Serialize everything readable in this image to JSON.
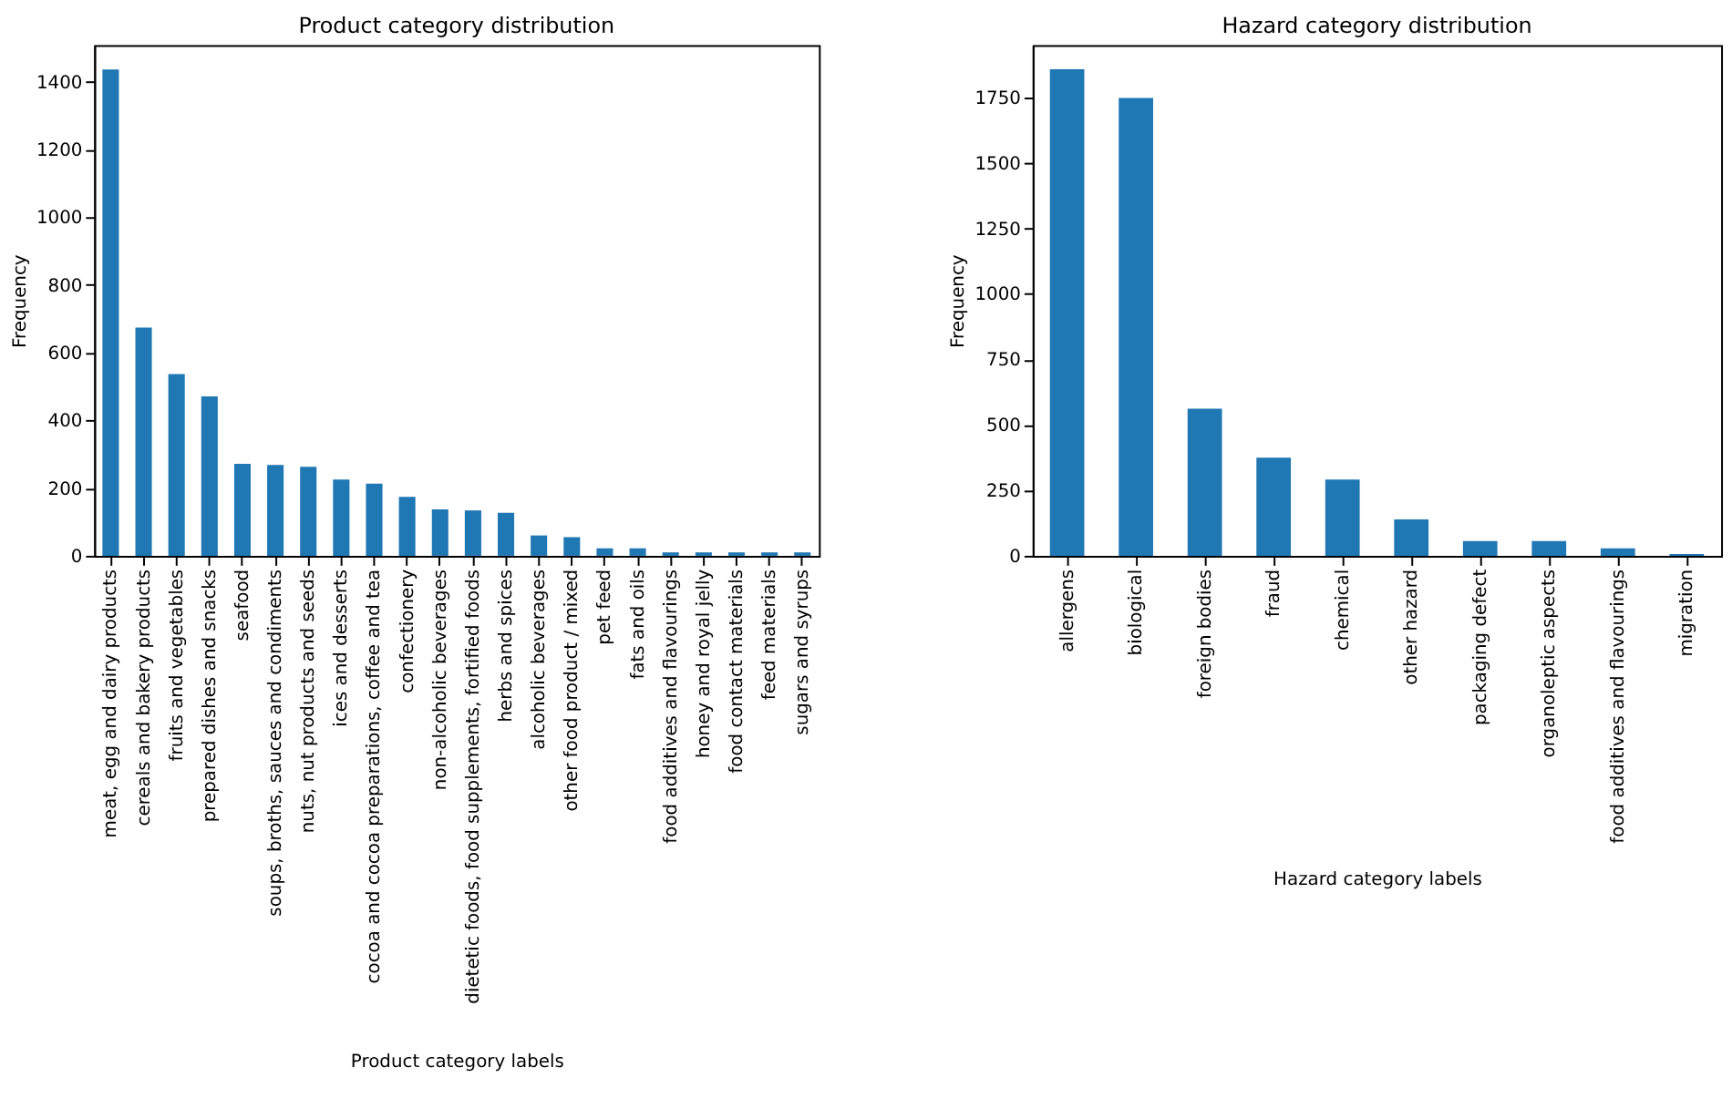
{
  "chart_data": [
    {
      "type": "bar",
      "title": "Product category distribution",
      "xlabel": "Product category labels",
      "ylabel": "Frequency",
      "categories": [
        "meat, egg and dairy products",
        "cereals and bakery products",
        "fruits and vegetables",
        "prepared dishes and snacks",
        "seafood",
        "soups, broths, sauces and condiments",
        "nuts, nut products and seeds",
        "ices and desserts",
        "cocoa and cocoa preparations, coffee and tea",
        "confectionery",
        "non-alcoholic beverages",
        "dietetic foods, food supplements, fortified foods",
        "herbs and spices",
        "alcoholic beverages",
        "other food product / mixed",
        "pet feed",
        "fats and oils",
        "food additives and flavourings",
        "honey and royal jelly",
        "food contact materials",
        "feed materials",
        "sugars and syrups"
      ],
      "values": [
        1437,
        674,
        537,
        471,
        272,
        268,
        263,
        225,
        213,
        174,
        137,
        134,
        127,
        60,
        55,
        22,
        22,
        10,
        10,
        10,
        10,
        10
      ],
      "color": "#1f77b4",
      "ylim": [
        0,
        1509
      ],
      "yticks": [
        0,
        200,
        400,
        600,
        800,
        1000,
        1200,
        1400
      ],
      "grid": false,
      "legend": false
    },
    {
      "type": "bar",
      "title": "Hazard category distribution",
      "xlabel": "Hazard category labels",
      "ylabel": "Frequency",
      "categories": [
        "allergens",
        "biological",
        "foreign bodies",
        "fraud",
        "chemical",
        "other hazard",
        "packaging defect",
        "organoleptic aspects",
        "food additives and flavourings",
        "migration"
      ],
      "values": [
        1858,
        1748,
        562,
        375,
        291,
        139,
        56,
        56,
        28,
        7
      ],
      "color": "#1f77b4",
      "ylim": [
        0,
        1950
      ],
      "yticks": [
        0,
        250,
        500,
        750,
        1000,
        1250,
        1500,
        1750
      ],
      "grid": false,
      "legend": false
    }
  ]
}
